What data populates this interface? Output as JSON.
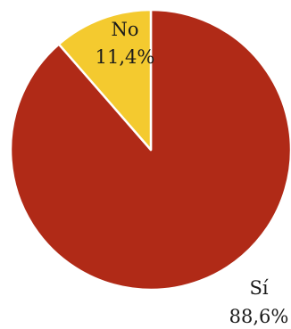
{
  "chart_data": {
    "type": "pie",
    "slices": [
      {
        "label": "Sí",
        "percent_label": "88,6%",
        "value": 88.6,
        "color": "#b02a17"
      },
      {
        "label": "No",
        "percent_label": "11,4%",
        "value": 11.4,
        "color": "#f4ca2f"
      }
    ],
    "start": "top",
    "direction": "clockwise",
    "legend": "none"
  }
}
